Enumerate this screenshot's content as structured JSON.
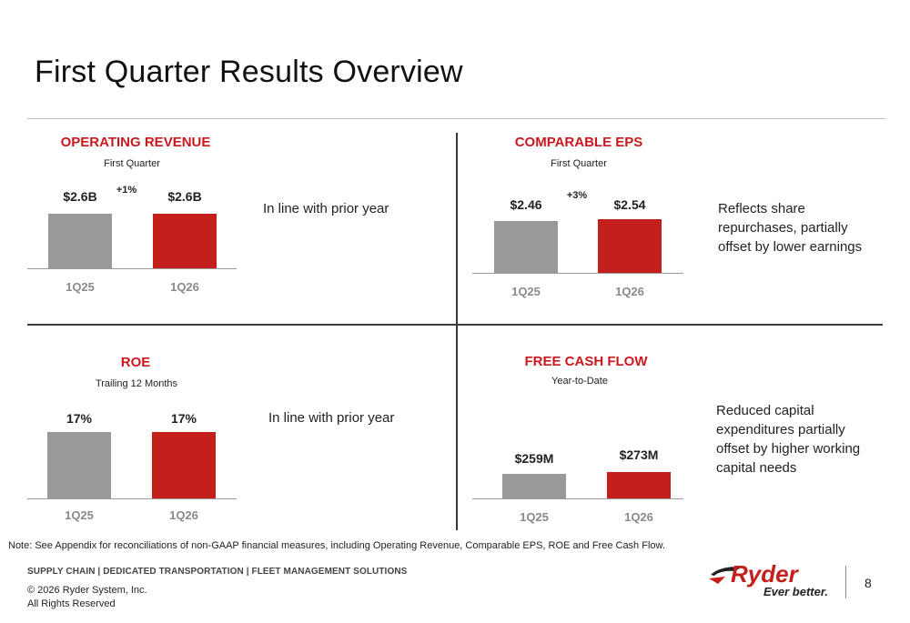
{
  "title": "First Quarter Results Overview",
  "colors": {
    "accent": "#c3201c",
    "prior": "#999999"
  },
  "panels": [
    {
      "title": "OPERATING REVENUE",
      "subtitle": "First Quarter",
      "change": "+1%",
      "comment": "In line with prior year",
      "chart_data": {
        "type": "bar",
        "categories": [
          "1Q25",
          "1Q26"
        ],
        "values": [
          2.6,
          2.6
        ],
        "labels": [
          "$2.6B",
          "$2.6B"
        ]
      }
    },
    {
      "title": "COMPARABLE EPS",
      "subtitle": "First Quarter",
      "change": "+3%",
      "comment": "Reflects share repurchases, partially offset by lower earnings",
      "chart_data": {
        "type": "bar",
        "categories": [
          "1Q25",
          "1Q26"
        ],
        "values": [
          2.46,
          2.54
        ],
        "labels": [
          "$2.46",
          "$2.54"
        ]
      }
    },
    {
      "title": "ROE",
      "subtitle": "Trailing 12 Months",
      "change": "",
      "comment": "In line with prior year",
      "chart_data": {
        "type": "bar",
        "categories": [
          "1Q25",
          "1Q26"
        ],
        "values": [
          17,
          17
        ],
        "labels": [
          "17%",
          "17%"
        ]
      }
    },
    {
      "title": "FREE CASH FLOW",
      "subtitle": "Year-to-Date",
      "change": "",
      "comment": "Reduced capital expenditures partially offset by higher working capital needs",
      "chart_data": {
        "type": "bar",
        "categories": [
          "1Q25",
          "1Q26"
        ],
        "values": [
          259,
          273
        ],
        "labels": [
          "$259M",
          "$273M"
        ]
      }
    }
  ],
  "note": "Note: See Appendix for reconciliations of non-GAAP financial measures, including Operating Revenue, Comparable EPS, ROE and Free Cash Flow.",
  "footer": {
    "tagline": "SUPPLY CHAIN | DEDICATED TRANSPORTATION | FLEET MANAGEMENT SOLUTIONS",
    "copyright": "© 2026 Ryder System, Inc.",
    "rights": "All Rights Reserved",
    "logo_text": "Ryder",
    "logo_slogan": "Ever better.",
    "page_number": "8"
  }
}
